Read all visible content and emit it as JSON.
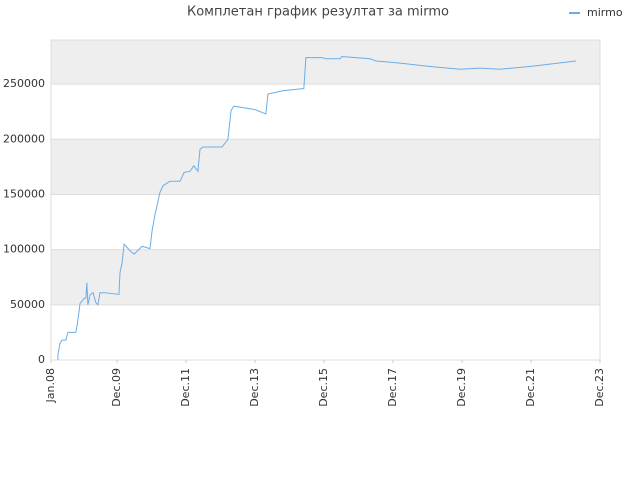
{
  "chart_data": {
    "type": "line",
    "title": "Комплетан график резултат за mirmo",
    "x": [
      2008.2,
      2008.2,
      2008.26,
      2008.32,
      2008.43,
      2008.49,
      2008.72,
      2008.78,
      2008.84,
      2008.96,
      2009.01,
      2009.04,
      2009.07,
      2009.13,
      2009.22,
      2009.3,
      2009.36,
      2009.42,
      2009.54,
      2009.97,
      2010.0,
      2010.06,
      2010.12,
      2010.29,
      2010.41,
      2010.64,
      2010.87,
      2010.93,
      2011.01,
      2011.16,
      2011.25,
      2011.45,
      2011.74,
      2011.86,
      2012.03,
      2012.14,
      2012.26,
      2012.32,
      2012.41,
      2012.96,
      2013.13,
      2013.22,
      2013.3,
      2013.91,
      2014.23,
      2014.29,
      2014.72,
      2015.33,
      2015.39,
      2015.86,
      2015.97,
      2016.38,
      2016.43,
      2016.84,
      2017.25,
      2017.42,
      2018.12,
      2018.99,
      2019.86,
      2020.43,
      2021.01,
      2021.88,
      2023.22
    ],
    "series": [
      {
        "name": "mirmo",
        "color": "#6aaee8",
        "values": [
          0,
          4500,
          15000,
          18000,
          18000,
          25000,
          25000,
          36000,
          51000,
          56000,
          56000,
          70000,
          50000,
          59000,
          61000,
          52000,
          50000,
          61000,
          61000,
          59500,
          79000,
          88000,
          105000,
          99000,
          96000,
          103000,
          101000,
          117000,
          131000,
          152000,
          158000,
          162000,
          162000,
          170000,
          171000,
          176000,
          171000,
          191000,
          193000,
          193000,
          200000,
          226000,
          230000,
          227000,
          223000,
          241000,
          244000,
          246000,
          274000,
          274000,
          273000,
          273000,
          275000,
          274000,
          273000,
          271000,
          269000,
          266000,
          263500,
          264500,
          263500,
          266000,
          271000
        ]
      }
    ],
    "xlim": [
      2008.0,
      2023.917
    ],
    "xticks": [
      {
        "value": 2008.0,
        "label": "Jan.08"
      },
      {
        "value": 2009.917,
        "label": "Dec.09"
      },
      {
        "value": 2011.917,
        "label": "Dec.11"
      },
      {
        "value": 2013.917,
        "label": "Dec.13"
      },
      {
        "value": 2015.917,
        "label": "Dec.15"
      },
      {
        "value": 2017.917,
        "label": "Dec.17"
      },
      {
        "value": 2019.917,
        "label": "Dec.19"
      },
      {
        "value": 2021.917,
        "label": "Dec.21"
      },
      {
        "value": 2023.917,
        "label": "Dec.23"
      }
    ],
    "ylim": [
      0,
      290000
    ],
    "yticks": [
      0,
      50000,
      100000,
      150000,
      200000,
      250000
    ],
    "grid": true,
    "legend": "top-right"
  }
}
